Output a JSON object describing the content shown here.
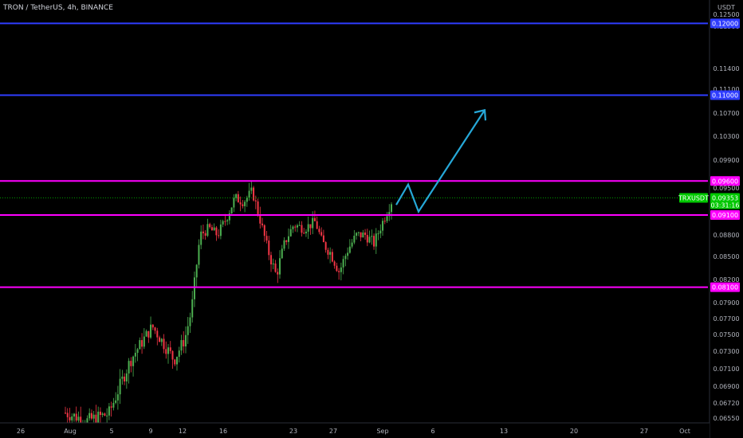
{
  "header": {
    "symbol_title": "TRON / TetherUS, 4h, BINANCE"
  },
  "colors": {
    "background": "#000000",
    "up_candle": "#4caf50",
    "down_candle": "#f23645",
    "support_resistance_magenta": "#ff00ff",
    "target_line_blue": "#2f3dff",
    "projection_arrow": "#26a8d8",
    "current_price_green": "#00c800"
  },
  "chart_data": {
    "type": "candlestick",
    "title": "TRON / TetherUS, 4h, BINANCE",
    "y_axis_label": "USDT",
    "ylim": [
      0.065,
      0.128
    ],
    "y_ticks": [
      "0.12500",
      "0.11900",
      "0.11400",
      "0.11100",
      "0.10700",
      "0.10300",
      "0.09900",
      "0.09500",
      "0.09100",
      "0.08800",
      "0.08500",
      "0.08200",
      "0.07900",
      "0.07700",
      "0.07500",
      "0.07300",
      "0.07100",
      "0.06900",
      "0.06720",
      "0.06550"
    ],
    "x_ticks": [
      "26",
      "Aug",
      "5",
      "9",
      "12",
      "16",
      "23",
      "27",
      "Sep",
      "6",
      "13",
      "20",
      "27",
      "Oct"
    ],
    "horizontal_levels": [
      {
        "value": 0.12,
        "label": "0.12000",
        "color": "#2f3dff"
      },
      {
        "value": 0.11,
        "label": "0.11000",
        "color": "#2f3dff"
      },
      {
        "value": 0.096,
        "label": "0.09600",
        "color": "#ff00ff"
      },
      {
        "value": 0.091,
        "label": "0.09100",
        "color": "#ff00ff"
      },
      {
        "value": 0.081,
        "label": "0.08100",
        "color": "#ff00ff"
      }
    ],
    "current_price": {
      "symbol": "TRXUSDT",
      "price": "0.09353",
      "countdown": "03:31:16"
    },
    "projection_arrow": {
      "description_points": [
        [
          0.0925,
          "start"
        ],
        [
          0.0955,
          "peak"
        ],
        [
          0.0915,
          "dip"
        ],
        [
          0.1075,
          "target"
        ]
      ]
    },
    "price_path_keypoints": [
      {
        "t": 0,
        "p": 0.0661
      },
      {
        "t": 10,
        "p": 0.0652
      },
      {
        "t": 20,
        "p": 0.066
      },
      {
        "t": 30,
        "p": 0.072
      },
      {
        "t": 40,
        "p": 0.076
      },
      {
        "t": 45,
        "p": 0.074
      },
      {
        "t": 50,
        "p": 0.072
      },
      {
        "t": 55,
        "p": 0.0745
      },
      {
        "t": 58,
        "p": 0.078
      },
      {
        "t": 62,
        "p": 0.088
      },
      {
        "t": 66,
        "p": 0.089
      },
      {
        "t": 70,
        "p": 0.088
      },
      {
        "t": 74,
        "p": 0.0905
      },
      {
        "t": 78,
        "p": 0.0935
      },
      {
        "t": 82,
        "p": 0.093
      },
      {
        "t": 86,
        "p": 0.0945
      },
      {
        "t": 89,
        "p": 0.091
      },
      {
        "t": 93,
        "p": 0.086
      },
      {
        "t": 97,
        "p": 0.0825
      },
      {
        "t": 101,
        "p": 0.087
      },
      {
        "t": 105,
        "p": 0.0895
      },
      {
        "t": 110,
        "p": 0.089
      },
      {
        "t": 115,
        "p": 0.09
      },
      {
        "t": 118,
        "p": 0.087
      },
      {
        "t": 122,
        "p": 0.0855
      },
      {
        "t": 126,
        "p": 0.083
      },
      {
        "t": 130,
        "p": 0.086
      },
      {
        "t": 134,
        "p": 0.088
      },
      {
        "t": 138,
        "p": 0.088
      },
      {
        "t": 142,
        "p": 0.0868
      },
      {
        "t": 146,
        "p": 0.09
      },
      {
        "t": 150,
        "p": 0.093
      }
    ]
  }
}
